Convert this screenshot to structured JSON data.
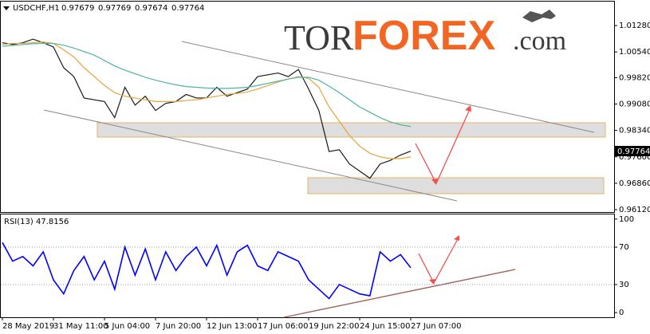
{
  "chart_data": [
    {
      "type": "line",
      "symbol": "USDCHF,H1",
      "ohlc": [
        "0.97679",
        "0.97769",
        "0.97674",
        "0.97764"
      ],
      "last_price_label": "0.97764",
      "watermark": [
        "TOR",
        "FOREX",
        ".com"
      ],
      "categories": [
        "28 May 2019",
        null,
        null,
        null,
        null,
        "31 May 11:00",
        null,
        null,
        null,
        null,
        "5 Jun 04:00",
        null,
        null,
        null,
        null,
        "7 Jun 20:00",
        null,
        null,
        null,
        null,
        "12 Jun 13:00",
        null,
        null,
        null,
        null,
        "17 Jun 06:00",
        null,
        null,
        null,
        null,
        "19 Jun 22:00",
        null,
        null,
        null,
        null,
        "24 Jun 15:00",
        null,
        null,
        null,
        null,
        "27 Jun 07:00"
      ],
      "series": [
        {
          "color": "#1a1a1a",
          "values": [
            1.008,
            1.0075,
            1.008,
            1.009,
            1.008,
            1.0068,
            1.001,
            0.9985,
            0.9925,
            0.992,
            0.9915,
            0.987,
            0.9955,
            0.9905,
            0.993,
            0.989,
            0.991,
            0.9915,
            0.9935,
            0.9925,
            0.9925,
            0.9955,
            0.993,
            0.994,
            0.995,
            0.9985,
            0.999,
            0.9995,
            0.9985,
            1.0005,
            0.995,
            0.989,
            0.9775,
            0.978,
            0.974,
            0.972,
            0.97,
            0.974,
            0.975,
            0.9765,
            0.9776
          ]
        },
        {
          "color": "#e8a33a",
          "values": [
            1.0075,
            1.0078,
            1.0078,
            1.008,
            1.0082,
            1.0078,
            1.006,
            1.004,
            1.001,
            0.9985,
            0.996,
            0.994,
            0.993,
            0.9925,
            0.992,
            0.9915,
            0.9915,
            0.9915,
            0.9918,
            0.992,
            0.9925,
            0.993,
            0.9935,
            0.9938,
            0.9942,
            0.995,
            0.996,
            0.997,
            0.9978,
            0.9985,
            0.998,
            0.9955,
            0.99,
            0.986,
            0.982,
            0.979,
            0.977,
            0.976,
            0.9755,
            0.9755,
            0.976
          ]
        },
        {
          "color": "#4fb3a7",
          "values": [
            1.007,
            1.0072,
            1.0075,
            1.0077,
            1.0078,
            1.0078,
            1.0073,
            1.0065,
            1.0055,
            1.0045,
            1.003,
            1.0015,
            1.0003,
            0.9993,
            0.9983,
            0.9975,
            0.9968,
            0.9962,
            0.9957,
            0.9955,
            0.9953,
            0.9952,
            0.9952,
            0.9953,
            0.9955,
            0.996,
            0.9966,
            0.9972,
            0.9978,
            0.9983,
            0.9983,
            0.9975,
            0.9958,
            0.994,
            0.992,
            0.99,
            0.9885,
            0.987,
            0.9858,
            0.985,
            0.9845
          ]
        }
      ],
      "ylim": [
        0.96053,
        1.01952
      ],
      "yticks": [
        {
          "value": 1.0128,
          "label": "1.01280"
        },
        {
          "value": 1.0054,
          "label": "1.00540"
        },
        {
          "value": 0.9982,
          "label": "0.99820"
        },
        {
          "value": 0.9908,
          "label": "0.99080"
        },
        {
          "value": 0.9834,
          "label": "0.98340"
        },
        {
          "value": 0.976,
          "label": "0.97600"
        },
        {
          "value": 0.9686,
          "label": "0.96860"
        },
        {
          "value": 0.9612,
          "label": "0.96120"
        }
      ]
    },
    {
      "type": "line",
      "title": "RSI(13) 47.8156",
      "series": [
        {
          "color": "#0000ff",
          "values": [
            75,
            55,
            60,
            50,
            65,
            35,
            20,
            45,
            60,
            35,
            55,
            25,
            70,
            40,
            68,
            35,
            65,
            45,
            60,
            70,
            50,
            72,
            40,
            65,
            72,
            50,
            45,
            65,
            60,
            55,
            35,
            25,
            15,
            30,
            25,
            20,
            18,
            65,
            55,
            62,
            48
          ]
        }
      ],
      "ylim": [
        -5,
        105
      ],
      "yticks": [
        100,
        70,
        30,
        0
      ],
      "levels": [
        70,
        30
      ]
    }
  ]
}
